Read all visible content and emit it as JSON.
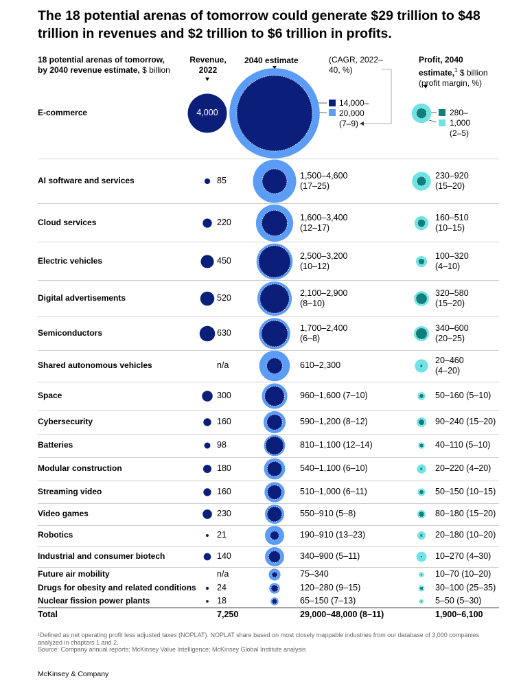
{
  "title": "The 18 potential arenas of tomorrow could generate $29 trillion to $48 trillion in revenues and $2 trillion to $6 trillion in profits.",
  "headers": {
    "arenas_bold": "18 potential arenas of tomorrow, by 2040 revenue estimate,",
    "arenas_unit": " $ billion",
    "revenue_line1": "Revenue,",
    "revenue_line2": "2022",
    "estimate": "2040 estimate",
    "cagr": "(CAGR, 2022–40, %)",
    "profit_bold": "Profit, 2040 estimate,",
    "profit_sup": "1",
    "profit_unit": " $ billion",
    "profit_margin": "(profit margin, %)"
  },
  "legend": {
    "high": "14,000–",
    "low": "20,000",
    "cagr": "(7–9)",
    "profit_high": "280–",
    "profit_low": "1,000",
    "profit_margin": "(2–5)"
  },
  "colors": {
    "revenue_navy": "#0b1f7a",
    "estimate_light": "#5b9cf6",
    "profit_teal": "#0e7f7a",
    "profit_light": "#6fe3e3"
  },
  "chart_data": {
    "type": "bubble-table",
    "units": "$ billion",
    "columns": [
      "Revenue, 2022",
      "2040 estimate (CAGR, 2022–40, %)",
      "Profit, 2040 estimate (profit margin, %)"
    ],
    "rows": [
      {
        "name": "E-commerce",
        "revenue_2022": 4000,
        "revenue_label": "4,000",
        "est_low": 14000,
        "est_high": 20000,
        "est_label": "",
        "cagr": "(7–9)",
        "profit_low": 280,
        "profit_high": 1000,
        "profit_label": "",
        "margin": "(2–5)"
      },
      {
        "name": "AI software and services",
        "revenue_2022": 85,
        "revenue_label": "85",
        "est_low": 1500,
        "est_high": 4600,
        "est_label": "1,500–4,600",
        "cagr": "(17–25)",
        "profit_low": 230,
        "profit_high": 920,
        "profit_label": "230–920",
        "margin": "(15–20)"
      },
      {
        "name": "Cloud services",
        "revenue_2022": 220,
        "revenue_label": "220",
        "est_low": 1600,
        "est_high": 3400,
        "est_label": "1,600–3,400",
        "cagr": "(12–17)",
        "profit_low": 160,
        "profit_high": 510,
        "profit_label": "160–510",
        "margin": "(10–15)"
      },
      {
        "name": "Electric vehicles",
        "revenue_2022": 450,
        "revenue_label": "450",
        "est_low": 2500,
        "est_high": 3200,
        "est_label": "2,500–3,200",
        "cagr": "(10–12)",
        "profit_low": 100,
        "profit_high": 320,
        "profit_label": "100–320",
        "margin": "(4–10)"
      },
      {
        "name": "Digital advertisements",
        "revenue_2022": 520,
        "revenue_label": "520",
        "est_low": 2100,
        "est_high": 2900,
        "est_label": "2,100–2,900",
        "cagr": "(8–10)",
        "profit_low": 320,
        "profit_high": 580,
        "profit_label": "320–580",
        "margin": "(15–20)"
      },
      {
        "name": "Semiconductors",
        "revenue_2022": 630,
        "revenue_label": "630",
        "est_low": 1700,
        "est_high": 2400,
        "est_label": "1,700–2,400",
        "cagr": "(6–8)",
        "profit_low": 340,
        "profit_high": 600,
        "profit_label": "340–600",
        "margin": "(20–25)"
      },
      {
        "name": "Shared autonomous vehicles",
        "revenue_2022": null,
        "revenue_label": "n/a",
        "est_low": 610,
        "est_high": 2300,
        "est_label": "610–2,300",
        "cagr": "",
        "profit_low": 20,
        "profit_high": 460,
        "profit_label": "20–460",
        "margin": "(4–20)"
      },
      {
        "name": "Space",
        "revenue_2022": 300,
        "revenue_label": "300",
        "est_low": 960,
        "est_high": 1600,
        "est_label": "960–1,600 (7–10)",
        "cagr": "",
        "profit_low": 50,
        "profit_high": 160,
        "profit_label": "50–160 (5–10)",
        "margin": ""
      },
      {
        "name": "Cybersecurity",
        "revenue_2022": 160,
        "revenue_label": "160",
        "est_low": 590,
        "est_high": 1200,
        "est_label": "590–1,200 (8–12)",
        "cagr": "",
        "profit_low": 90,
        "profit_high": 240,
        "profit_label": "90–240 (15–20)",
        "margin": ""
      },
      {
        "name": "Batteries",
        "revenue_2022": 98,
        "revenue_label": "98",
        "est_low": 810,
        "est_high": 1100,
        "est_label": "810–1,100 (12–14)",
        "cagr": "",
        "profit_low": 40,
        "profit_high": 110,
        "profit_label": "40–110 (5–10)",
        "margin": ""
      },
      {
        "name": "Modular construction",
        "revenue_2022": 180,
        "revenue_label": "180",
        "est_low": 540,
        "est_high": 1100,
        "est_label": "540–1,100 (6–10)",
        "cagr": "",
        "profit_low": 20,
        "profit_high": 220,
        "profit_label": "20–220 (4–20)",
        "margin": ""
      },
      {
        "name": "Streaming video",
        "revenue_2022": 160,
        "revenue_label": "160",
        "est_low": 510,
        "est_high": 1000,
        "est_label": "510–1,000 (6–11)",
        "cagr": "",
        "profit_low": 50,
        "profit_high": 150,
        "profit_label": "50–150 (10–15)",
        "margin": ""
      },
      {
        "name": "Video games",
        "revenue_2022": 230,
        "revenue_label": "230",
        "est_low": 550,
        "est_high": 910,
        "est_label": "550–910 (5–8)",
        "cagr": "",
        "profit_low": 80,
        "profit_high": 180,
        "profit_label": "80–180 (15–20)",
        "margin": ""
      },
      {
        "name": "Robotics",
        "revenue_2022": 21,
        "revenue_label": "21",
        "est_low": 190,
        "est_high": 910,
        "est_label": "190–910 (13–23)",
        "cagr": "",
        "profit_low": 20,
        "profit_high": 180,
        "profit_label": "20–180 (10–20)",
        "margin": ""
      },
      {
        "name": "Industrial and consumer biotech",
        "revenue_2022": 140,
        "revenue_label": "140",
        "est_low": 340,
        "est_high": 900,
        "est_label": "340–900 (5–11)",
        "cagr": "",
        "profit_low": 10,
        "profit_high": 270,
        "profit_label": "10–270 (4–30)",
        "margin": ""
      },
      {
        "name": "Future air mobility",
        "revenue_2022": null,
        "revenue_label": "n/a",
        "est_low": 75,
        "est_high": 340,
        "est_label": "75–340",
        "cagr": "",
        "profit_low": 10,
        "profit_high": 70,
        "profit_label": "10–70 (10–20)",
        "margin": ""
      },
      {
        "name": "Drugs for obesity and related conditions",
        "revenue_2022": 24,
        "revenue_label": "24",
        "est_low": 120,
        "est_high": 280,
        "est_label": "120–280 (9–15)",
        "cagr": "",
        "profit_low": 30,
        "profit_high": 100,
        "profit_label": "30–100 (25–35)",
        "margin": ""
      },
      {
        "name": "Nuclear fission power plants",
        "revenue_2022": 18,
        "revenue_label": "18",
        "est_low": 65,
        "est_high": 150,
        "est_label": "65–150 (7–13)",
        "cagr": "",
        "profit_low": 5,
        "profit_high": 50,
        "profit_label": "5–50 (5–30)",
        "margin": ""
      }
    ],
    "total": {
      "label": "Total",
      "revenue": "7,250",
      "estimate": "29,000–48,000 (8–11)",
      "profit": "1,900–6,100"
    }
  },
  "footnote": "¹Defined as net operating profit less adjusted taxes (NOPLAT). NOPLAT share based on most closely mappable industries from our database of 3,000 companies analyzed in chapters 1 and 2.",
  "source": "Source: Company annual reports; McKinsey Value Intelligence; McKinsey Global Institute analysis",
  "brand": "McKinsey & Company"
}
